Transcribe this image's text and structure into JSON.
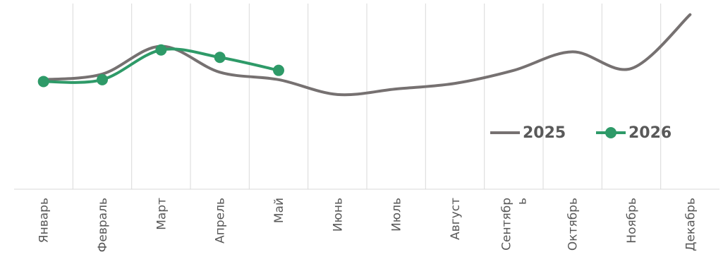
{
  "chart_data": {
    "type": "line",
    "categories": [
      "Январь",
      "Февраль",
      "Март",
      "Апрель",
      "Май",
      "Июнь",
      "Июль",
      "Август",
      "Сентябрь",
      "Октябрь",
      "Ноябрь",
      "Декабрь"
    ],
    "series": [
      {
        "name": "2025",
        "color": "#767171",
        "values": [
          59,
          62,
          77,
          63,
          59,
          51,
          54,
          57,
          64,
          74,
          65,
          94
        ]
      },
      {
        "name": "2026",
        "color": "#2e9a68",
        "values": [
          58,
          59,
          75,
          71,
          64,
          null,
          null,
          null,
          null,
          null,
          null,
          null
        ]
      }
    ],
    "ylim": [
      0,
      100
    ],
    "grid": true,
    "smooth": true
  }
}
